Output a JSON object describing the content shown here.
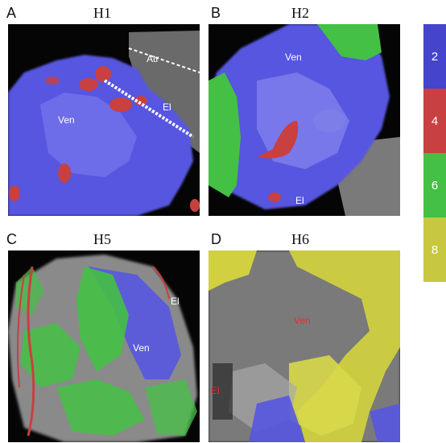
{
  "panels": [
    {
      "letter": "A",
      "title": "H1",
      "labels": {
        "atr": "Atr",
        "ven": "Ven",
        "el": "El"
      }
    },
    {
      "letter": "B",
      "title": "H2",
      "labels": {
        "ven": "Ven",
        "el": "El"
      }
    },
    {
      "letter": "C",
      "title": "H5",
      "labels": {
        "el": "El",
        "ven": "Ven"
      }
    },
    {
      "letter": "D",
      "title": "H6",
      "labels": {
        "ven": "Ven",
        "el": "El"
      }
    }
  ],
  "legend": [
    {
      "value": "2",
      "color": "#4444cc"
    },
    {
      "value": "4",
      "color": "#c84040"
    },
    {
      "value": "6",
      "color": "#44c044"
    },
    {
      "value": "8",
      "color": "#c8c840"
    }
  ]
}
